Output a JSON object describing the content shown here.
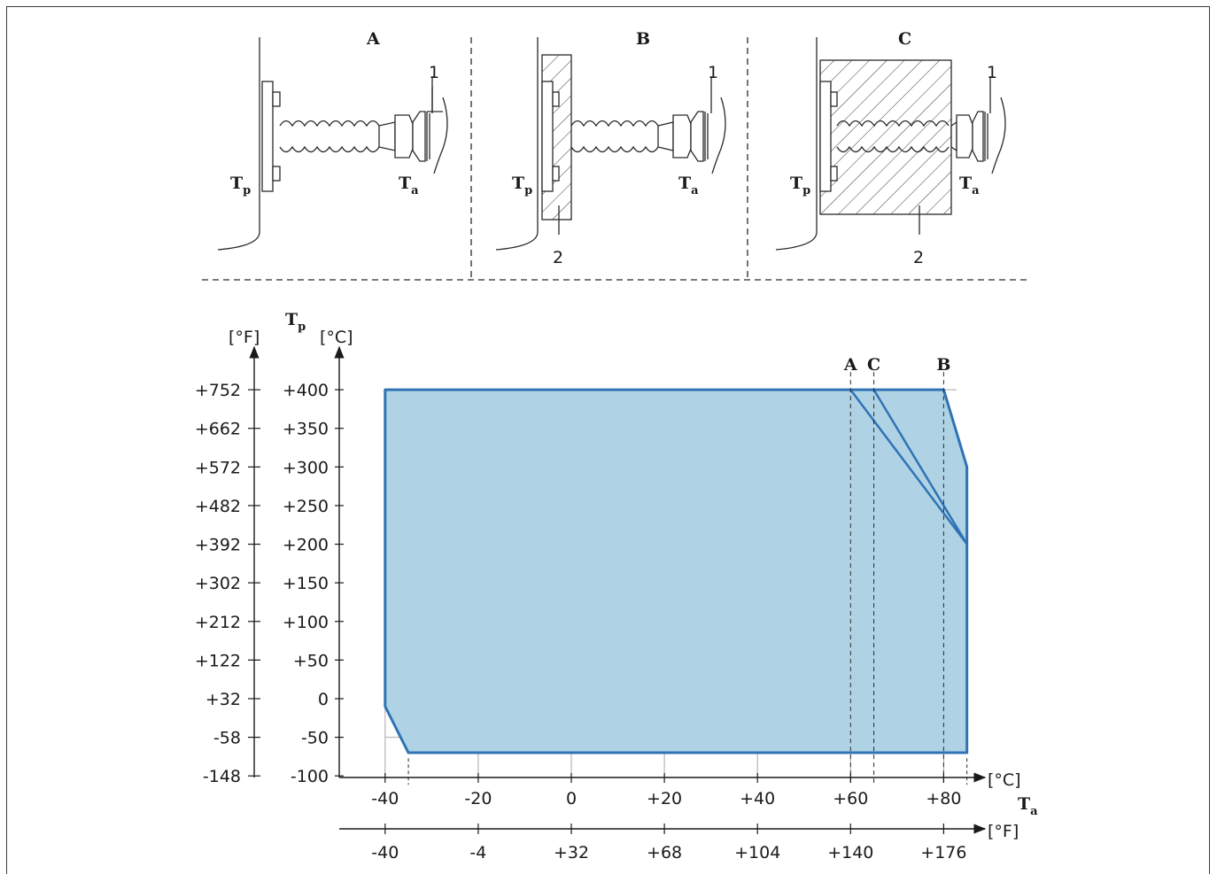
{
  "variants": {
    "A": {
      "label": "A",
      "process_temp": "T",
      "process_sub": "p",
      "ambient_temp": "T",
      "ambient_sub": "a",
      "callout_1": "1"
    },
    "B": {
      "label": "B",
      "process_temp": "T",
      "process_sub": "p",
      "ambient_temp": "T",
      "ambient_sub": "a",
      "callout_1": "1",
      "callout_2": "2"
    },
    "C": {
      "label": "C",
      "process_temp": "T",
      "process_sub": "p",
      "ambient_temp": "T",
      "ambient_sub": "a",
      "callout_1": "1",
      "callout_2": "2"
    }
  },
  "colors": {
    "fill": "#afd3e5",
    "outline": "#2f73b5",
    "grid": "#a8a8a8",
    "ink": "#1a1a1a"
  },
  "chart_data": {
    "type": "area",
    "y_axis_symbol": "T",
    "y_axis_symbol_sub": "p",
    "y_unit_c": "[°C]",
    "y_unit_f": "[°F]",
    "x_axis_symbol": "T",
    "x_axis_symbol_sub": "a",
    "x_unit_c": "[°C]",
    "x_unit_f": "[°F]",
    "y_ticks_c": [
      "+400",
      "+350",
      "+300",
      "+250",
      "+200",
      "+150",
      "+100",
      "+50",
      "0",
      "-50",
      "-100"
    ],
    "y_ticks_f": [
      "+752",
      "+662",
      "+572",
      "+482",
      "+392",
      "+302",
      "+212",
      "+122",
      "+32",
      "-58",
      "-148"
    ],
    "x_ticks_c": [
      "-40",
      "-20",
      "0",
      "+20",
      "+40",
      "+60",
      "+80"
    ],
    "x_ticks_f": [
      "-40",
      "-4",
      "+32",
      "+68",
      "+104",
      "+140",
      "+176"
    ],
    "ylim": [
      -100,
      400
    ],
    "xlim": [
      -50,
      88
    ],
    "grid": true,
    "region": {
      "name": "",
      "points": [
        [
          -40,
          -10
        ],
        [
          -40,
          400
        ],
        [
          80,
          400
        ],
        [
          85,
          300
        ],
        [
          85,
          -70
        ],
        [
          -35,
          -70
        ]
      ]
    },
    "derating_lines": [
      {
        "name": "A",
        "points": [
          [
            60,
            400
          ],
          [
            85,
            200
          ]
        ]
      },
      {
        "name": "C",
        "points": [
          [
            65,
            400
          ],
          [
            85,
            200
          ]
        ]
      },
      {
        "name": "B",
        "points": [
          [
            80,
            400
          ],
          [
            85,
            300
          ],
          [
            85,
            200
          ]
        ]
      }
    ],
    "markers": [
      {
        "label": "A",
        "x": 60
      },
      {
        "label": "C",
        "x": 65
      },
      {
        "label": "B",
        "x": 80
      }
    ],
    "extra_x_markers": [
      -35,
      85
    ]
  }
}
